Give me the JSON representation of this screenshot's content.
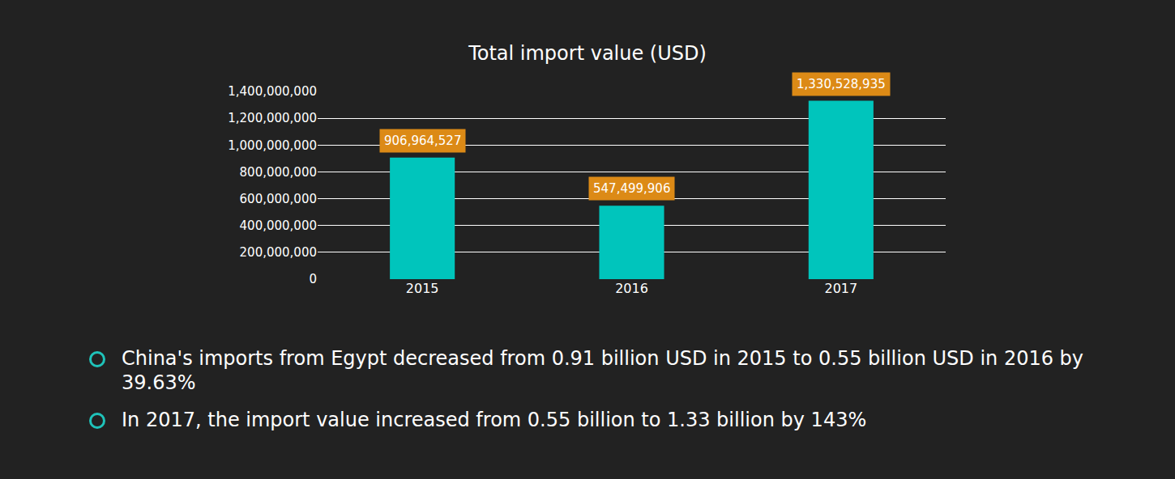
{
  "chart_data": {
    "type": "bar",
    "title": "Total import value (USD)",
    "categories": [
      "2015",
      "2016",
      "2017"
    ],
    "values": [
      906964527,
      547499906,
      1330528935
    ],
    "value_labels": [
      "906,964,527",
      "547,499,906",
      "1,330,528,935"
    ],
    "data_labels": true,
    "color": "#00c5bc",
    "ylim": [
      0,
      1400000000
    ],
    "yticks": [
      0,
      {
        "value": 200000000,
        "label": "200,000,000"
      },
      {
        "value": 400000000,
        "label": "400,000,000"
      },
      {
        "value": 600000000,
        "label": "600,000,000"
      },
      {
        "value": 800000000,
        "label": "800,000,000"
      },
      {
        "value": 1000000000,
        "label": "1,000,000,000"
      },
      {
        "value": 1200000000,
        "label": "1,200,000,000"
      },
      {
        "value": 1400000000,
        "label": "1,400,000,000"
      }
    ],
    "grid": true,
    "annotations": [
      "China's imports from Egypt decreased from 0.91 billion USD in 2015 to 0.55 billion USD in 2016 by 39.63%",
      "In 2017, the import value increased from 0.55 billion to 1.33 billion by 143%"
    ]
  }
}
